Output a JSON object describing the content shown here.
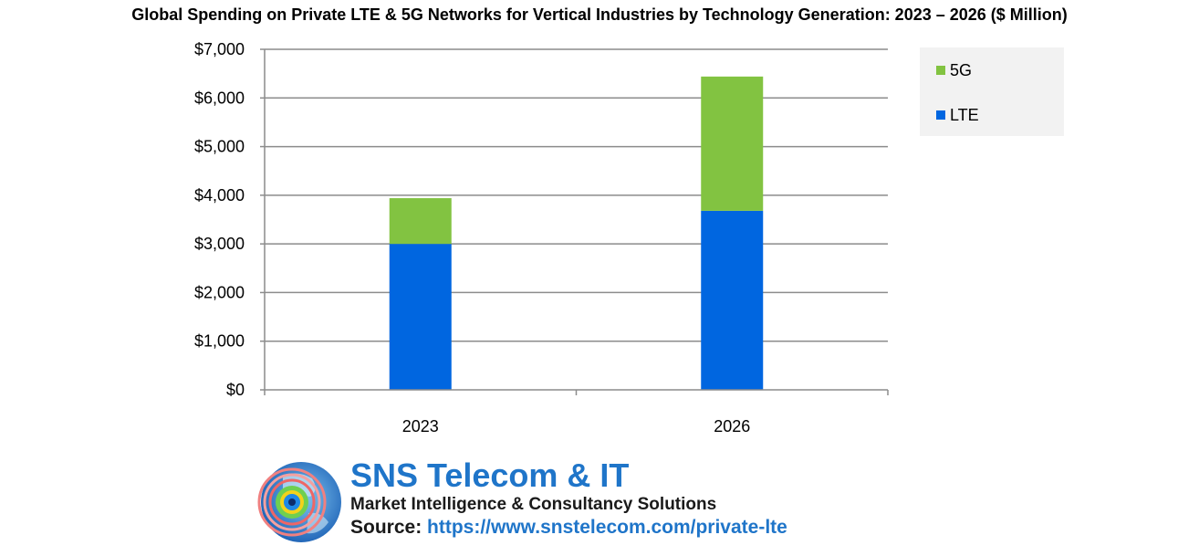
{
  "chart_data": {
    "type": "bar",
    "stacked": true,
    "title": "Global Spending on Private LTE & 5G Networks for Vertical Industries by Technology Generation: 2023 – 2026 ($ Million)",
    "categories": [
      "2023",
      "2026"
    ],
    "series": [
      {
        "name": "LTE",
        "values": [
          3000,
          3680
        ],
        "color": "#0066e0"
      },
      {
        "name": "5G",
        "values": [
          940,
          2760
        ],
        "color": "#82c341"
      }
    ],
    "ylim": [
      0,
      7000
    ],
    "yticks": [
      0,
      1000,
      2000,
      3000,
      4000,
      5000,
      6000,
      7000
    ],
    "ytick_labels": [
      "$0",
      "$1,000",
      "$2,000",
      "$3,000",
      "$4,000",
      "$5,000",
      "$6,000",
      "$7,000"
    ],
    "xlabel": "",
    "ylabel": "",
    "grid": true,
    "legend": {
      "placement": "top-right",
      "entries": [
        "5G",
        "LTE"
      ]
    }
  },
  "branding": {
    "logo_icon": "globe-target-icon",
    "name": "SNS Telecom & IT",
    "tagline": "Market Intelligence & Consultancy Solutions",
    "source_label": "Source:",
    "source_url": "https://www.snstelecom.com/private-lte",
    "colors": {
      "brand_blue": "#1f75c9"
    }
  }
}
